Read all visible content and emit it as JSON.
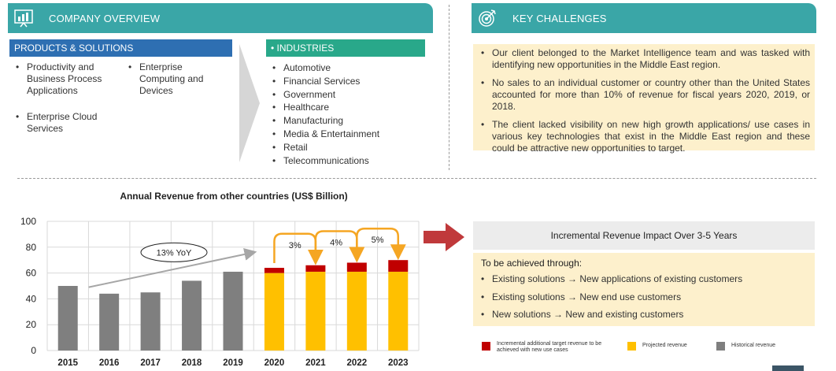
{
  "company_overview": {
    "title": "COMPANY OVERVIEW",
    "products": {
      "title": "PRODUCTS & SOLUTIONS",
      "col1": [
        "Productivity and Business Process Applications",
        "Enterprise Cloud Services"
      ],
      "col2": [
        "Enterprise Computing and Devices"
      ]
    },
    "industries": {
      "title": "• INDUSTRIES",
      "items": [
        "Automotive",
        "Financial Services",
        "Government",
        "Healthcare",
        "Manufacturing",
        "Media & Entertainment",
        "Retail",
        "Telecommunications"
      ]
    }
  },
  "key_challenges": {
    "title": "KEY CHALLENGES",
    "items": [
      "Our client belonged to the Market Intelligence team and was tasked with identifying new opportunities in the Middle East region.",
      "No sales to an individual customer or country other than the United States accounted for more than 10% of revenue for fiscal years 2020, 2019, or 2018.",
      "The client lacked visibility on new high growth applications/ use cases in various key technologies that exist in the Middle East region and these could be attractive new opportunities to target."
    ]
  },
  "impact": {
    "title": "Incremental Revenue Impact Over 3-5 Years",
    "intro": "To be achieved through:",
    "items": [
      "Existing solutions → New applications of existing customers",
      "Existing solutions → New end use customers",
      "New solutions → New and existing customers"
    ]
  },
  "legend": {
    "incremental": "Incremental additional target revenue to be achieved with new use cases",
    "projected": "Projected revenue",
    "historical": "Historical revenue"
  },
  "colors": {
    "teal": "#3aa6a7",
    "blue": "#2e6fb2",
    "green": "#29a88a",
    "historical": "#7f7f7f",
    "projected": "#ffc000",
    "incremental": "#c00000",
    "arrow_red": "#c0393b",
    "arrow_orange": "#f5a623"
  },
  "chart_data": {
    "type": "bar",
    "title": "Annual Revenue from other countries (US$ Billion)",
    "categories": [
      "2015",
      "2016",
      "2017",
      "2018",
      "2019",
      "2020",
      "2021",
      "2022",
      "2023"
    ],
    "ylim": [
      0,
      100
    ],
    "yticks": [
      0,
      20,
      40,
      60,
      80,
      100
    ],
    "grid": true,
    "stacked": true,
    "series": [
      {
        "name": "Historical revenue",
        "values": [
          50,
          44,
          45,
          54,
          61,
          0,
          0,
          0,
          0
        ]
      },
      {
        "name": "Projected revenue",
        "values": [
          0,
          0,
          0,
          0,
          0,
          60,
          61,
          61,
          61
        ]
      },
      {
        "name": "Incremental additional target revenue to be achieved with new use cases",
        "values": [
          0,
          0,
          0,
          0,
          0,
          4,
          5,
          7,
          9
        ]
      }
    ],
    "annotations": {
      "trend_label": "13% YoY",
      "growth_labels": [
        "3%",
        "4%",
        "5%"
      ]
    }
  }
}
